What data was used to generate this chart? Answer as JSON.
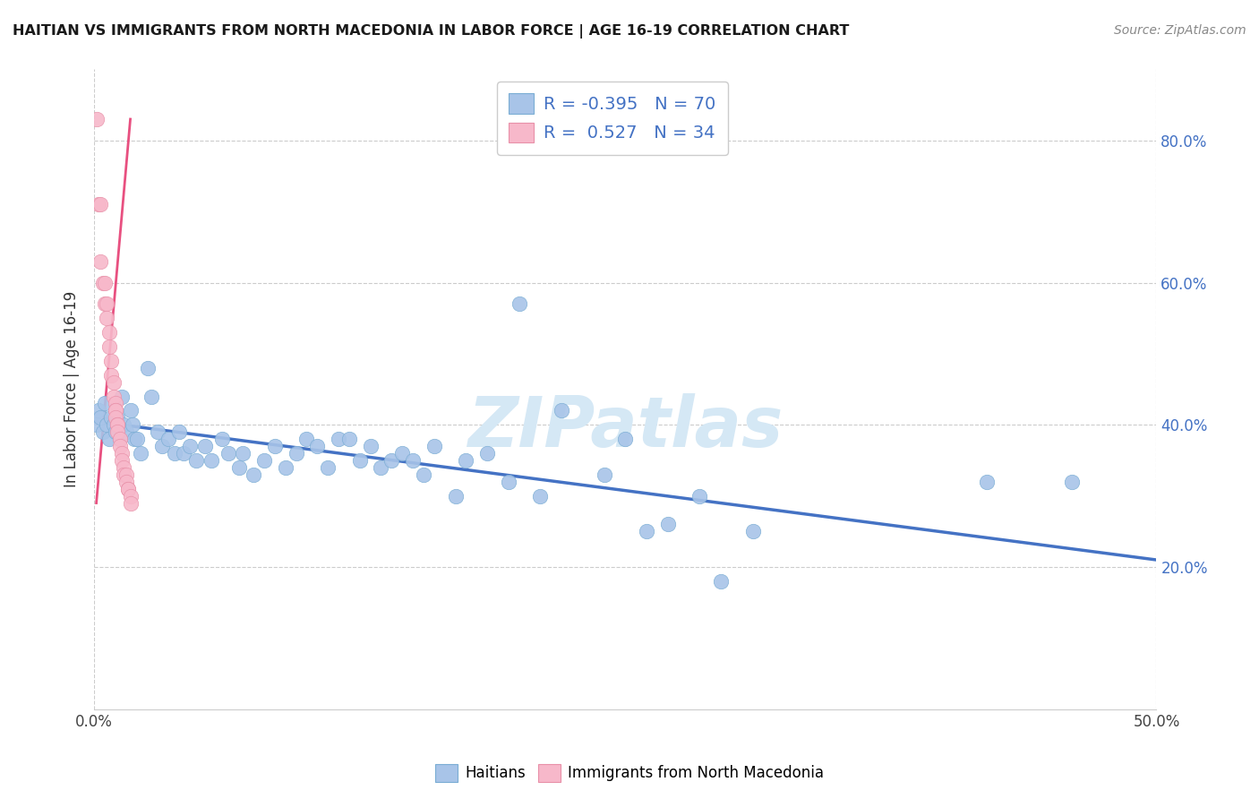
{
  "title": "HAITIAN VS IMMIGRANTS FROM NORTH MACEDONIA IN LABOR FORCE | AGE 16-19 CORRELATION CHART",
  "source": "Source: ZipAtlas.com",
  "ylabel": "In Labor Force | Age 16-19",
  "xlim": [
    0.0,
    0.5
  ],
  "ylim": [
    0.0,
    0.9
  ],
  "xticks": [
    0.0,
    0.5
  ],
  "xticklabels": [
    "0.0%",
    "50.0%"
  ],
  "yticks_right": [
    0.2,
    0.4,
    0.6,
    0.8
  ],
  "yticklabels_right": [
    "20.0%",
    "40.0%",
    "60.0%",
    "80.0%"
  ],
  "blue_R": "-0.395",
  "blue_N": "70",
  "pink_R": "0.527",
  "pink_N": "34",
  "blue_scatter_color": "#a8c4e8",
  "pink_scatter_color": "#f7b8ca",
  "blue_edge_color": "#7aadd4",
  "pink_edge_color": "#e890a8",
  "blue_line_color": "#4472C4",
  "pink_line_color": "#e85080",
  "watermark_color": "#d5e8f5",
  "legend_label_blue": "Haitians",
  "legend_label_pink": "Immigrants from North Macedonia",
  "blue_scatter_x": [
    0.001,
    0.002,
    0.003,
    0.004,
    0.005,
    0.006,
    0.007,
    0.008,
    0.009,
    0.01,
    0.011,
    0.012,
    0.013,
    0.014,
    0.015,
    0.017,
    0.018,
    0.019,
    0.02,
    0.022,
    0.025,
    0.027,
    0.03,
    0.032,
    0.035,
    0.038,
    0.04,
    0.042,
    0.045,
    0.048,
    0.052,
    0.055,
    0.06,
    0.063,
    0.068,
    0.07,
    0.075,
    0.08,
    0.085,
    0.09,
    0.095,
    0.1,
    0.105,
    0.11,
    0.115,
    0.12,
    0.125,
    0.13,
    0.135,
    0.14,
    0.145,
    0.15,
    0.155,
    0.16,
    0.17,
    0.175,
    0.185,
    0.195,
    0.2,
    0.21,
    0.22,
    0.24,
    0.25,
    0.26,
    0.27,
    0.285,
    0.295,
    0.31,
    0.42,
    0.46
  ],
  "blue_scatter_y": [
    0.4,
    0.42,
    0.41,
    0.39,
    0.43,
    0.4,
    0.38,
    0.41,
    0.4,
    0.39,
    0.41,
    0.38,
    0.44,
    0.4,
    0.39,
    0.42,
    0.4,
    0.38,
    0.38,
    0.36,
    0.48,
    0.44,
    0.39,
    0.37,
    0.38,
    0.36,
    0.39,
    0.36,
    0.37,
    0.35,
    0.37,
    0.35,
    0.38,
    0.36,
    0.34,
    0.36,
    0.33,
    0.35,
    0.37,
    0.34,
    0.36,
    0.38,
    0.37,
    0.34,
    0.38,
    0.38,
    0.35,
    0.37,
    0.34,
    0.35,
    0.36,
    0.35,
    0.33,
    0.37,
    0.3,
    0.35,
    0.36,
    0.32,
    0.57,
    0.3,
    0.42,
    0.33,
    0.38,
    0.25,
    0.26,
    0.3,
    0.18,
    0.25,
    0.32,
    0.32
  ],
  "pink_scatter_x": [
    0.001,
    0.002,
    0.003,
    0.003,
    0.004,
    0.005,
    0.005,
    0.006,
    0.006,
    0.007,
    0.007,
    0.008,
    0.008,
    0.009,
    0.009,
    0.01,
    0.01,
    0.01,
    0.01,
    0.011,
    0.011,
    0.011,
    0.012,
    0.012,
    0.013,
    0.013,
    0.014,
    0.014,
    0.015,
    0.015,
    0.016,
    0.016,
    0.017,
    0.017
  ],
  "pink_scatter_y": [
    0.83,
    0.71,
    0.71,
    0.63,
    0.6,
    0.6,
    0.57,
    0.57,
    0.55,
    0.53,
    0.51,
    0.49,
    0.47,
    0.46,
    0.44,
    0.43,
    0.42,
    0.42,
    0.41,
    0.4,
    0.4,
    0.39,
    0.38,
    0.37,
    0.36,
    0.35,
    0.34,
    0.33,
    0.33,
    0.32,
    0.31,
    0.31,
    0.3,
    0.29
  ],
  "blue_trend_x": [
    0.0,
    0.5
  ],
  "blue_trend_y": [
    0.405,
    0.21
  ],
  "pink_trend_x": [
    0.001,
    0.017
  ],
  "pink_trend_y": [
    0.29,
    0.83
  ]
}
